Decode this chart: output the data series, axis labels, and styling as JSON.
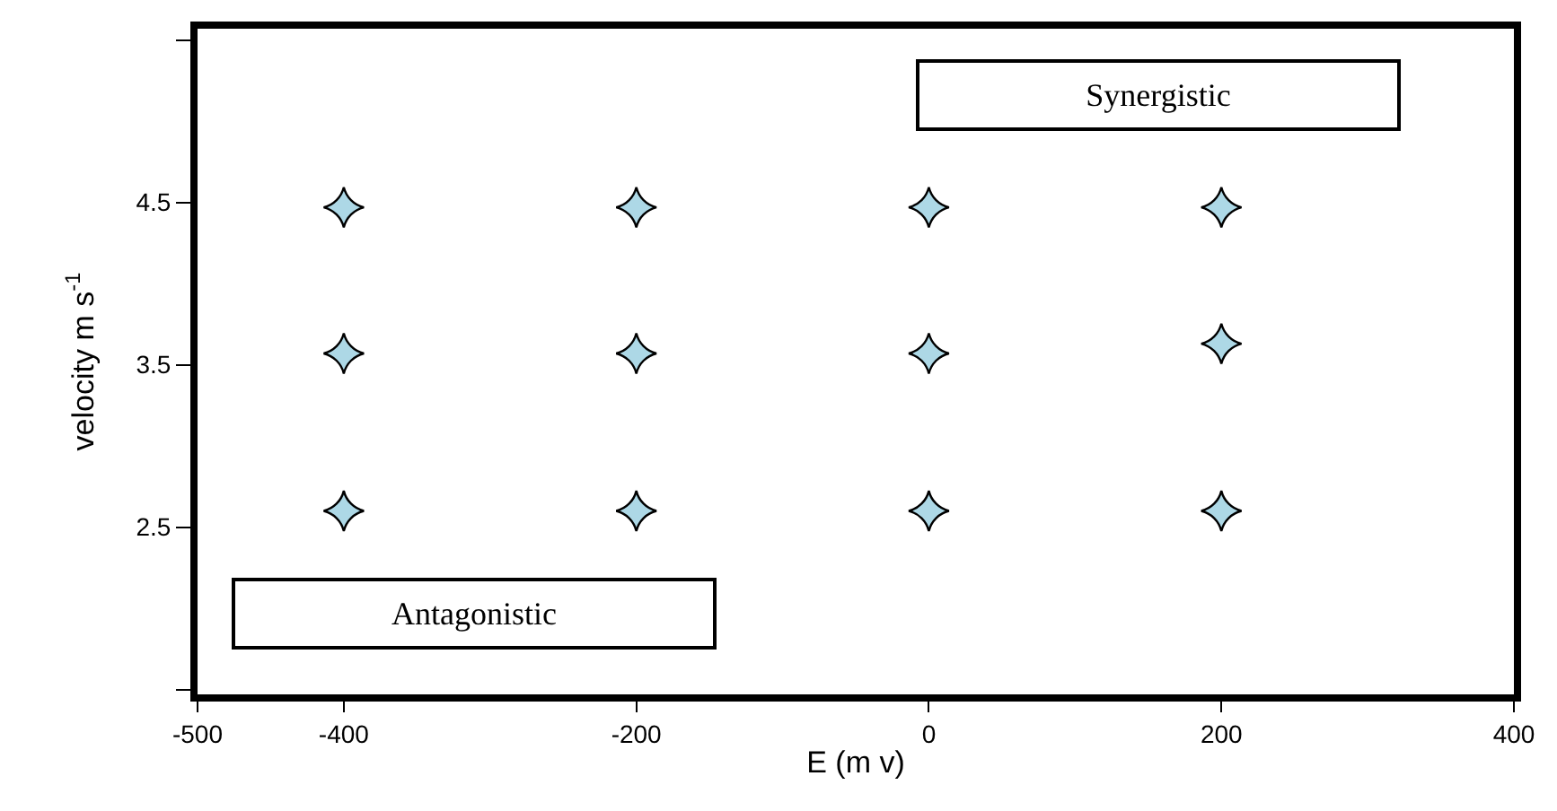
{
  "chart_data": {
    "type": "scatter",
    "xlabel": "E (m v)",
    "ylabel": "velocity m s$^{-1}$",
    "x": [
      -400,
      -400,
      -400,
      -200,
      -200,
      -200,
      0,
      0,
      0,
      200,
      200,
      200
    ],
    "series": [
      {
        "color": "#add8e6",
        "values": [
          4.47,
          3.57,
          2.6,
          4.47,
          3.57,
          2.6,
          4.47,
          3.57,
          2.6,
          4.47,
          3.63,
          2.6
        ]
      }
    ],
    "marker": "diamond",
    "xlim": [
      -500,
      400
    ],
    "xticks": [
      -500,
      -400,
      -200,
      0,
      200,
      400
    ],
    "ylim": [
      1.47,
      5.57
    ],
    "yticks": [
      {
        "value": 1.5,
        "label": null
      },
      2.5,
      3.5,
      4.5,
      {
        "value": 5.5,
        "label": null
      }
    ],
    "annotations": [
      "Synergistic",
      "Antagonistic"
    ],
    "legend": false
  }
}
